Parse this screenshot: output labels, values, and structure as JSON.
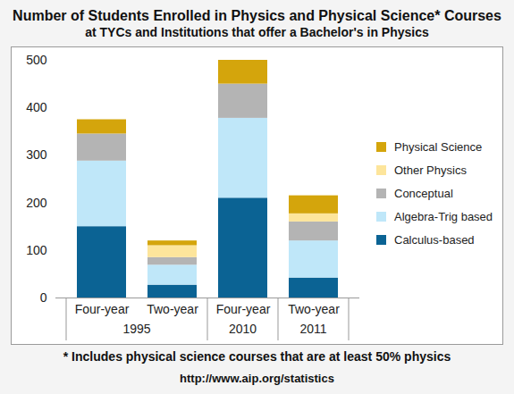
{
  "chart_data": {
    "type": "bar",
    "title": "Number of Students Enrolled in Physics and Physical Science* Courses",
    "subtitle": "at TYCs and Institutions that offer a Bachelor's in Physics",
    "categories": [
      "Four-year",
      "Two-year",
      "Four-year",
      "Two-year"
    ],
    "groups": [
      "1995",
      "1995",
      "2010",
      "2011"
    ],
    "series": [
      {
        "name": "Calculus-based",
        "color": "#0b6394",
        "values": [
          150,
          27,
          210,
          42
        ]
      },
      {
        "name": "Algebra-Trig based",
        "color": "#bfe7f9",
        "values": [
          138,
          42,
          168,
          78
        ]
      },
      {
        "name": "Conceptual",
        "color": "#b4b4b4",
        "values": [
          57,
          16,
          72,
          40
        ]
      },
      {
        "name": "Other Physics",
        "color": "#fde59b",
        "values": [
          0,
          25,
          0,
          17
        ]
      },
      {
        "name": "Physical Science",
        "color": "#d4a50c",
        "values": [
          30,
          10,
          50,
          38
        ]
      }
    ],
    "ylim": [
      0,
      500
    ],
    "yticks": [
      0,
      100,
      200,
      300,
      400,
      500
    ],
    "stacked": true,
    "grid": false,
    "legend": "right",
    "footnote": "* Includes physical science courses that are at least 50% physics",
    "source": "http://www.aip.org/statistics"
  }
}
